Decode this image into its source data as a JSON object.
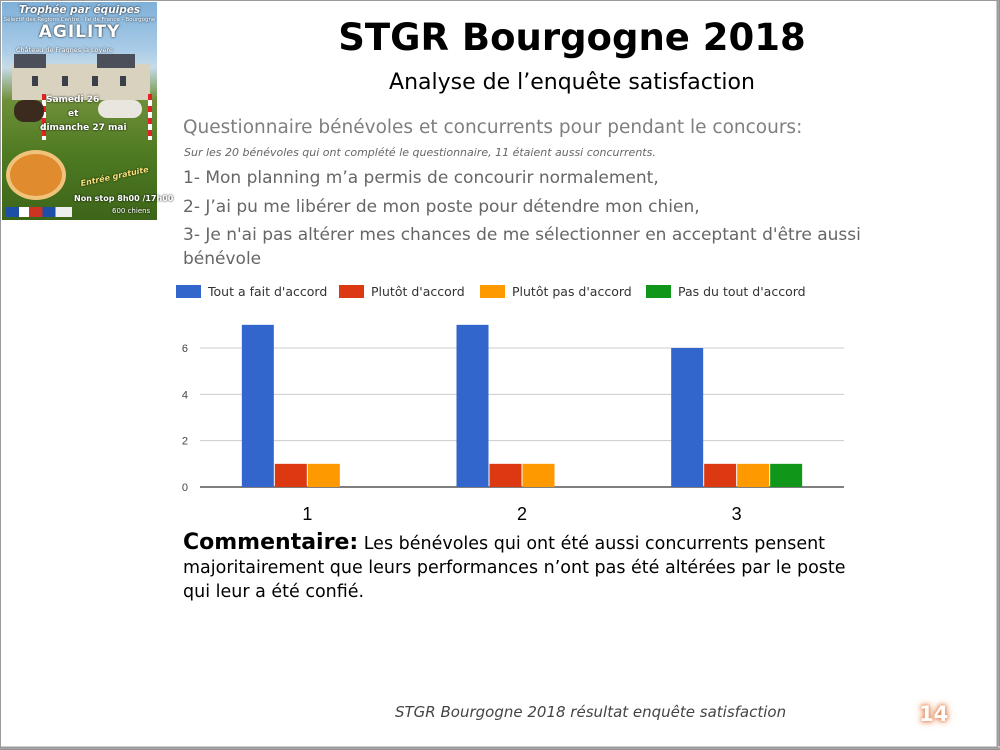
{
  "poster": {
    "line1": "Trophée par équipes",
    "line2": "Sélectif des Régions Centre - Ile de France - Bourgogne",
    "line3": "AGILITY",
    "line4": "Château de Fragnes la Loyère",
    "line5": "Samedi 26",
    "line6": "et",
    "line7": "dimanche 27 mai",
    "line8": "Entrée gratuite",
    "line9": "Non stop 8h00 /17h00",
    "line10": "600 chiens"
  },
  "header": {
    "title": "STGR Bourgogne 2018",
    "subtitle": "Analyse de l’enquête satisfaction"
  },
  "questions": {
    "heading": "Questionnaire bénévoles et concurrents pour pendant le concours:",
    "note": "Sur les 20 bénévoles qui ont complété le questionnaire, 11 étaient aussi concurrents.",
    "q1": "1-  Mon planning m’a permis de concourir normalement,",
    "q2": "2- J’ai pu me libérer de mon poste pour détendre mon chien,",
    "q3": "3- Je n'ai pas altérer mes chances de me sélectionner en acceptant d'être aussi bénévole"
  },
  "chart_data": {
    "type": "bar",
    "categories": [
      "1",
      "2",
      "3"
    ],
    "series": [
      {
        "name": "Tout a fait d'accord",
        "color": "#3366cc",
        "values": [
          7,
          7,
          6
        ]
      },
      {
        "name": "Plutôt d'accord",
        "color": "#dc3912",
        "values": [
          1,
          1,
          1
        ]
      },
      {
        "name": "Plutôt pas d'accord",
        "color": "#ff9900",
        "values": [
          1,
          1,
          1
        ]
      },
      {
        "name": "Pas du tout d'accord",
        "color": "#109618",
        "values": [
          0,
          0,
          1
        ]
      }
    ],
    "yticks": [
      0,
      2,
      4,
      6
    ],
    "ylim": [
      0,
      8
    ],
    "grid": true,
    "legend_position": "top"
  },
  "comment": {
    "label": "Commentaire:",
    "text": "  Les bénévoles qui ont été aussi concurrents pensent majoritairement que leurs performances n’ont pas été altérées par le poste qui leur a été confié."
  },
  "footer": {
    "text": "STGR Bourgogne 2018 résultat enquête satisfaction",
    "page_number": "14"
  }
}
